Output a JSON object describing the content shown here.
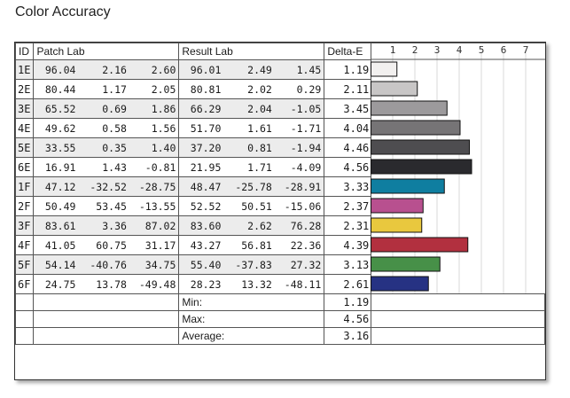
{
  "title": "Color Accuracy",
  "headers": {
    "id": "ID",
    "patch": "Patch Lab",
    "result": "Result Lab",
    "delta": "Delta-E"
  },
  "rows": [
    {
      "id": "1E",
      "patch": [
        "96.04",
        "2.16",
        "2.60"
      ],
      "result": [
        "96.01",
        "2.49",
        "1.45"
      ],
      "delta": "1.19",
      "color": "#f2f0ef"
    },
    {
      "id": "2E",
      "patch": [
        "80.44",
        "1.17",
        "2.05"
      ],
      "result": [
        "80.81",
        "2.02",
        "0.29"
      ],
      "delta": "2.11",
      "color": "#c8c6c6"
    },
    {
      "id": "3E",
      "patch": [
        "65.52",
        "0.69",
        "1.86"
      ],
      "result": [
        "66.29",
        "2.04",
        "-1.05"
      ],
      "delta": "3.45",
      "color": "#9c9a9c"
    },
    {
      "id": "4E",
      "patch": [
        "49.62",
        "0.58",
        "1.56"
      ],
      "result": [
        "51.70",
        "1.61",
        "-1.71"
      ],
      "delta": "4.04",
      "color": "#767476"
    },
    {
      "id": "5E",
      "patch": [
        "33.55",
        "0.35",
        "1.40"
      ],
      "result": [
        "37.20",
        "0.81",
        "-1.94"
      ],
      "delta": "4.46",
      "color": "#4e4d50"
    },
    {
      "id": "6E",
      "patch": [
        "16.91",
        "1.43",
        "-0.81"
      ],
      "result": [
        "21.95",
        "1.71",
        "-4.09"
      ],
      "delta": "4.56",
      "color": "#2a2a2e"
    },
    {
      "id": "1F",
      "patch": [
        "47.12",
        "-32.52",
        "-28.75"
      ],
      "result": [
        "48.47",
        "-25.78",
        "-28.91"
      ],
      "delta": "3.33",
      "color": "#0f7ea0"
    },
    {
      "id": "2F",
      "patch": [
        "50.49",
        "53.45",
        "-13.55"
      ],
      "result": [
        "52.52",
        "50.51",
        "-15.06"
      ],
      "delta": "2.37",
      "color": "#b8508f"
    },
    {
      "id": "3F",
      "patch": [
        "83.61",
        "3.36",
        "87.02"
      ],
      "result": [
        "83.60",
        "2.62",
        "76.28"
      ],
      "delta": "2.31",
      "color": "#e9c83e"
    },
    {
      "id": "4F",
      "patch": [
        "41.05",
        "60.75",
        "31.17"
      ],
      "result": [
        "43.27",
        "56.81",
        "22.36"
      ],
      "delta": "4.39",
      "color": "#b2303f"
    },
    {
      "id": "5F",
      "patch": [
        "54.14",
        "-40.76",
        "34.75"
      ],
      "result": [
        "55.40",
        "-37.83",
        "27.32"
      ],
      "delta": "3.13",
      "color": "#479048"
    },
    {
      "id": "6F",
      "patch": [
        "24.75",
        "13.78",
        "-49.48"
      ],
      "result": [
        "28.23",
        "13.32",
        "-48.11"
      ],
      "delta": "2.61",
      "color": "#263283"
    }
  ],
  "summary": [
    {
      "label": "Min:",
      "value": "1.19"
    },
    {
      "label": "Max:",
      "value": "4.56"
    },
    {
      "label": "Average:",
      "value": "3.16"
    }
  ],
  "chart_data": {
    "type": "bar",
    "orientation": "horizontal",
    "categories": [
      "1E",
      "2E",
      "3E",
      "4E",
      "5E",
      "6E",
      "1F",
      "2F",
      "3F",
      "4F",
      "5F",
      "6F"
    ],
    "values": [
      1.19,
      2.11,
      3.45,
      4.04,
      4.46,
      4.56,
      3.33,
      2.37,
      2.31,
      4.39,
      3.13,
      2.61
    ],
    "ticks": [
      "1",
      "2",
      "3",
      "4",
      "5",
      "6",
      "7"
    ],
    "xlim": [
      0,
      7.8
    ],
    "grid": true
  }
}
